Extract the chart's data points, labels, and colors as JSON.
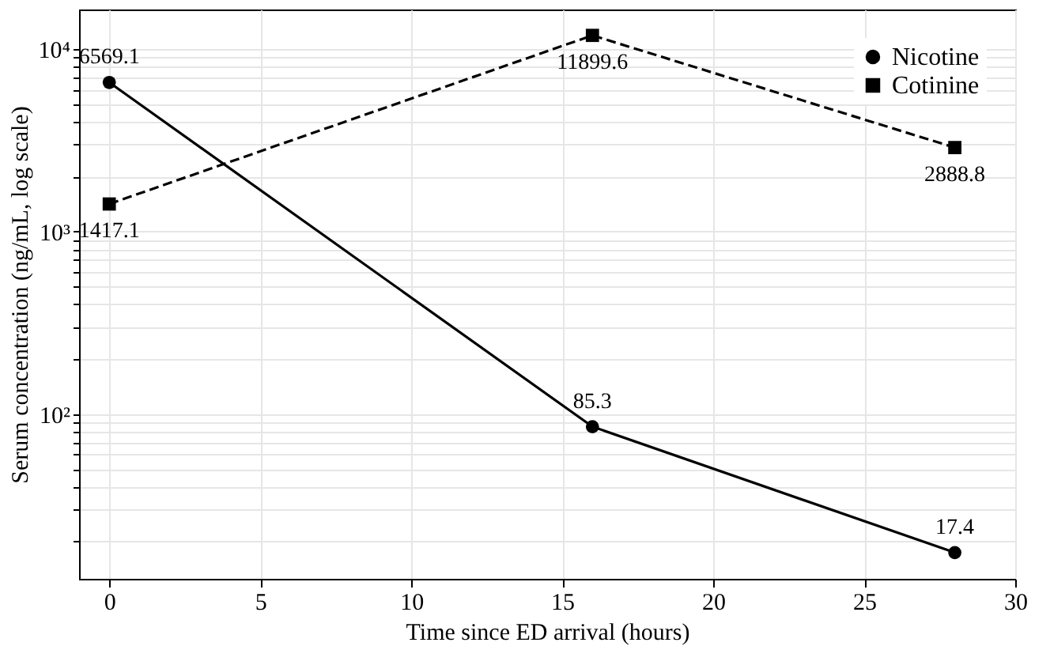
{
  "chart_data": {
    "type": "line",
    "xlabel": "Time since ED arrival (hours)",
    "ylabel": "Serum concentration (ng/mL, log scale)",
    "x": [
      0,
      16,
      28
    ],
    "series": [
      {
        "name": "Nicotine",
        "color": "#000000",
        "values": [
          6569.1,
          85.3,
          17.4
        ],
        "marker": "circle",
        "line_style": "solid"
      },
      {
        "name": "Cotinine",
        "color": "#000000",
        "values": [
          1417.1,
          11899.6,
          2888.8
        ],
        "marker": "square",
        "line_style": "dashed"
      }
    ],
    "xlim": [
      -1,
      30
    ],
    "xticks": [
      0,
      5,
      10,
      15,
      20,
      25,
      30
    ],
    "ylim": [
      12.5,
      16500
    ],
    "log": true,
    "yticks": [
      {
        "value": 20,
        "label": null
      },
      {
        "value": 30,
        "label": null
      },
      {
        "value": 40,
        "label": null
      },
      {
        "value": 50,
        "label": null
      },
      {
        "value": 60,
        "label": null
      },
      {
        "value": 70,
        "label": null
      },
      {
        "value": 80,
        "label": null
      },
      {
        "value": 90,
        "label": null
      },
      {
        "value": 100,
        "label": "10²"
      },
      {
        "value": 200,
        "label": null
      },
      {
        "value": 300,
        "label": null
      },
      {
        "value": 400,
        "label": null
      },
      {
        "value": 500,
        "label": null
      },
      {
        "value": 600,
        "label": null
      },
      {
        "value": 700,
        "label": null
      },
      {
        "value": 800,
        "label": null
      },
      {
        "value": 900,
        "label": null
      },
      {
        "value": 1000,
        "label": "10³"
      },
      {
        "value": 2000,
        "label": null
      },
      {
        "value": 3000,
        "label": null
      },
      {
        "value": 4000,
        "label": null
      },
      {
        "value": 5000,
        "label": null
      },
      {
        "value": 6000,
        "label": null
      },
      {
        "value": 7000,
        "label": null
      },
      {
        "value": 8000,
        "label": null
      },
      {
        "value": 9000,
        "label": null
      },
      {
        "value": 10000,
        "label": "10⁴"
      }
    ],
    "grid": true,
    "legend": "top right",
    "data_labels": true
  }
}
